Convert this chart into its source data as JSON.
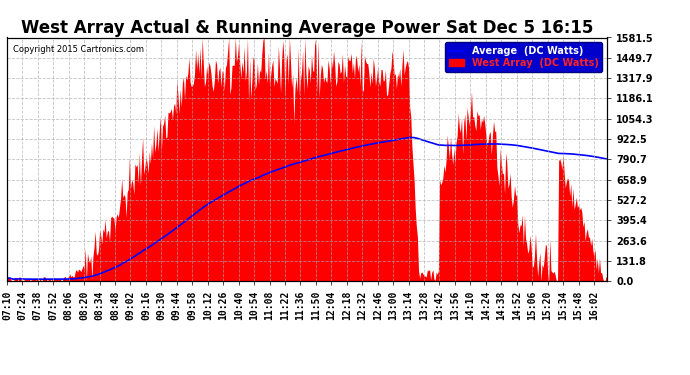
{
  "title": "West Array Actual & Running Average Power Sat Dec 5 16:15",
  "copyright": "Copyright 2015 Cartronics.com",
  "legend_labels": [
    "Average  (DC Watts)",
    "West Array  (DC Watts)"
  ],
  "y_min": 0.0,
  "y_max": 1581.5,
  "y_ticks": [
    0.0,
    131.8,
    263.6,
    395.4,
    527.2,
    658.9,
    790.7,
    922.5,
    1054.3,
    1186.1,
    1317.9,
    1449.7,
    1581.5
  ],
  "x_labels": [
    "07:10",
    "07:24",
    "07:38",
    "07:52",
    "08:06",
    "08:20",
    "08:34",
    "08:48",
    "09:02",
    "09:16",
    "09:30",
    "09:44",
    "09:58",
    "10:12",
    "10:26",
    "10:40",
    "10:54",
    "11:08",
    "11:22",
    "11:36",
    "11:50",
    "12:04",
    "12:18",
    "12:32",
    "12:46",
    "13:00",
    "13:14",
    "13:28",
    "13:42",
    "13:56",
    "14:10",
    "14:24",
    "14:38",
    "14:52",
    "15:06",
    "15:20",
    "15:34",
    "15:48",
    "16:02"
  ],
  "bar_color": "#ff0000",
  "line_color": "#0000ff",
  "background_color": "#ffffff",
  "plot_bg_color": "#ffffff",
  "grid_color": "#aaaaaa",
  "title_fontsize": 12,
  "tick_fontsize": 7
}
